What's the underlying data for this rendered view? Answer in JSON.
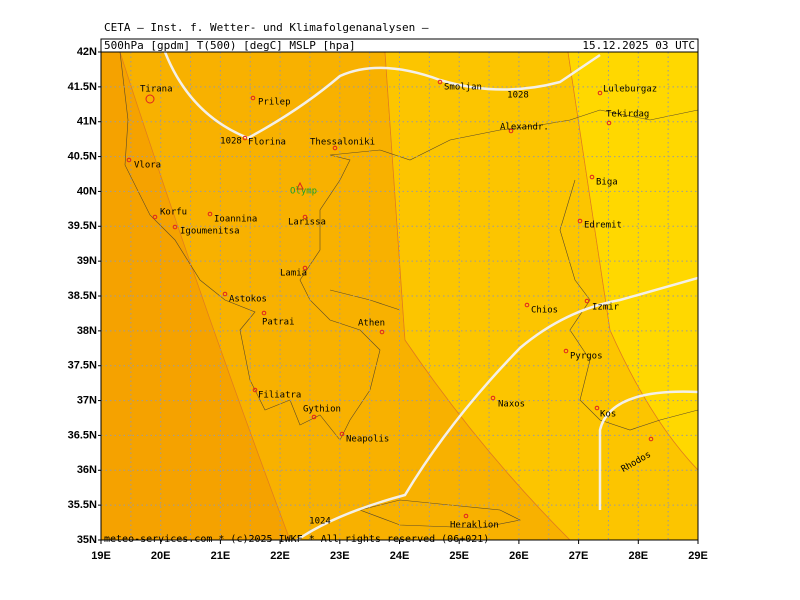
{
  "header": {
    "org": "CETA — Inst. f. Wetter- und Klimafolgenanalysen —",
    "fields": "500hPa [gpdm] T(500) [degC] MSLP [hpa]",
    "time": "15.12.2025 03 UTC"
  },
  "axes": {
    "lat_labels": [
      "42N",
      "41.5N",
      "41N",
      "40.5N",
      "40N",
      "39.5N",
      "39N",
      "38.5N",
      "38N",
      "37.5N",
      "37N",
      "36.5N",
      "36N",
      "35.5N",
      "35N"
    ],
    "lon_labels": [
      "19E",
      "20E",
      "21E",
      "22E",
      "23E",
      "24E",
      "25E",
      "26E",
      "27E",
      "28E",
      "29E"
    ]
  },
  "places": [
    {
      "name": "Tirana"
    },
    {
      "name": "Prilep"
    },
    {
      "name": "Florina"
    },
    {
      "name": "Thessaloniki"
    },
    {
      "name": "Olymp"
    },
    {
      "name": "Vlora"
    },
    {
      "name": "Korfu"
    },
    {
      "name": "Ioannina"
    },
    {
      "name": "Igoumenitsa"
    },
    {
      "name": "Larissa"
    },
    {
      "name": "Lamia"
    },
    {
      "name": "Astokos"
    },
    {
      "name": "Patrai"
    },
    {
      "name": "Athen"
    },
    {
      "name": "Filiatra"
    },
    {
      "name": "Gythion"
    },
    {
      "name": "Neapolis"
    },
    {
      "name": "Heraklion"
    },
    {
      "name": "Smoljan"
    },
    {
      "name": "Alexandr."
    },
    {
      "name": "Luleburgaz"
    },
    {
      "name": "Tekirdag"
    },
    {
      "name": "Biga"
    },
    {
      "name": "Edremit"
    },
    {
      "name": "Chios"
    },
    {
      "name": "Izmir"
    },
    {
      "name": "Pyrgos"
    },
    {
      "name": "Naxos"
    },
    {
      "name": "Kos"
    },
    {
      "name": "Rhodos"
    }
  ],
  "isobar_labels": [
    "1028",
    "1028",
    "1024"
  ],
  "footer": "meteo-services.com * (c)2025 IWKF * All rights reserved (06+021)"
}
